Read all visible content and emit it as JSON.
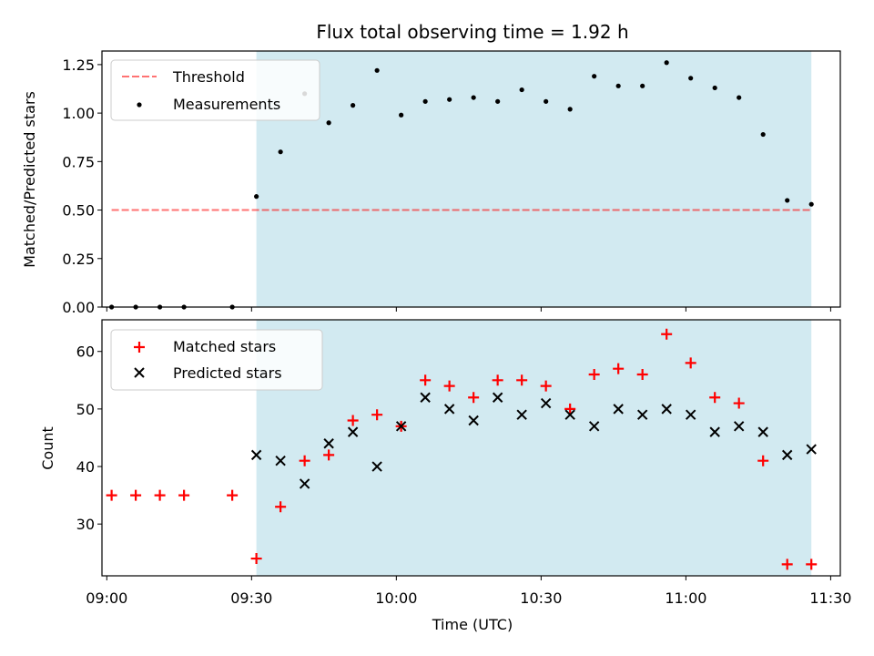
{
  "title": "Flux total observing time = 1.92 h",
  "colors": {
    "shade": "#add8e6",
    "threshold": "#ff0000",
    "matched": "#ff0000",
    "predicted": "#000000",
    "measurements": "#000000"
  },
  "chart_data": [
    {
      "type": "scatter",
      "ylabel": "Matched/Predicted stars",
      "ylim": [
        0,
        1.32
      ],
      "yticks": [
        0,
        0.25,
        0.5,
        0.75,
        1.0,
        1.25
      ],
      "ytick_labels": [
        "0.00",
        "0.25",
        "0.50",
        "0.75",
        "1.00",
        "1.25"
      ],
      "xlim": [
        "08:59",
        "11:32"
      ],
      "legend_position": "top-left",
      "shaded_interval": [
        "09:31",
        "11:26"
      ],
      "threshold": {
        "name": "Threshold",
        "value": 0.5,
        "x_range": [
          "09:01",
          "11:26"
        ]
      },
      "series": [
        {
          "name": "Measurements",
          "x": [
            "09:01",
            "09:06",
            "09:11",
            "09:16",
            "09:26",
            "09:31",
            "09:36",
            "09:41",
            "09:46",
            "09:51",
            "09:56",
            "10:01",
            "10:06",
            "10:11",
            "10:16",
            "10:21",
            "10:26",
            "10:31",
            "10:36",
            "10:41",
            "10:46",
            "10:51",
            "10:56",
            "11:01",
            "11:06",
            "11:11",
            "11:16",
            "11:21",
            "11:26"
          ],
          "y": [
            0,
            0,
            0,
            0,
            0,
            0.57,
            0.8,
            1.1,
            0.95,
            1.04,
            1.22,
            0.99,
            1.06,
            1.07,
            1.08,
            1.06,
            1.12,
            1.06,
            1.02,
            1.19,
            1.14,
            1.14,
            1.26,
            1.18,
            1.13,
            1.08,
            0.89,
            0.55,
            0.53
          ]
        }
      ]
    },
    {
      "type": "scatter",
      "xlabel": "Time (UTC)",
      "ylabel": "Count",
      "ylim": [
        21,
        65.5
      ],
      "yticks": [
        30,
        40,
        50,
        60
      ],
      "ytick_labels": [
        "30",
        "40",
        "50",
        "60"
      ],
      "xlim": [
        "08:59",
        "11:32"
      ],
      "xticks": [
        "09:00",
        "09:30",
        "10:00",
        "10:30",
        "11:00",
        "11:30"
      ],
      "xtick_labels": [
        "09:00",
        "09:30",
        "10:00",
        "10:30",
        "11:00",
        "11:30"
      ],
      "legend_position": "top-left",
      "shaded_interval": [
        "09:31",
        "11:26"
      ],
      "series": [
        {
          "name": "Matched stars",
          "marker": "plus",
          "x": [
            "09:01",
            "09:06",
            "09:11",
            "09:16",
            "09:26",
            "09:31",
            "09:36",
            "09:41",
            "09:46",
            "09:51",
            "09:56",
            "10:01",
            "10:06",
            "10:11",
            "10:16",
            "10:21",
            "10:26",
            "10:31",
            "10:36",
            "10:41",
            "10:46",
            "10:51",
            "10:56",
            "11:01",
            "11:06",
            "11:11",
            "11:16",
            "11:21",
            "11:26"
          ],
          "y": [
            35,
            35,
            35,
            35,
            35,
            24,
            33,
            41,
            42,
            48,
            49,
            47,
            55,
            54,
            52,
            55,
            55,
            54,
            50,
            56,
            57,
            56,
            63,
            58,
            52,
            51,
            41,
            23,
            23
          ]
        },
        {
          "name": "Predicted stars",
          "marker": "x",
          "x": [
            "09:31",
            "09:36",
            "09:41",
            "09:46",
            "09:51",
            "09:56",
            "10:01",
            "10:06",
            "10:11",
            "10:16",
            "10:21",
            "10:26",
            "10:31",
            "10:36",
            "10:41",
            "10:46",
            "10:51",
            "10:56",
            "11:01",
            "11:06",
            "11:11",
            "11:16",
            "11:21",
            "11:26"
          ],
          "y": [
            42,
            41,
            37,
            44,
            46,
            40,
            47,
            52,
            50,
            48,
            52,
            49,
            51,
            49,
            47,
            50,
            49,
            50,
            49,
            46,
            47,
            46,
            42,
            43
          ]
        }
      ]
    }
  ]
}
